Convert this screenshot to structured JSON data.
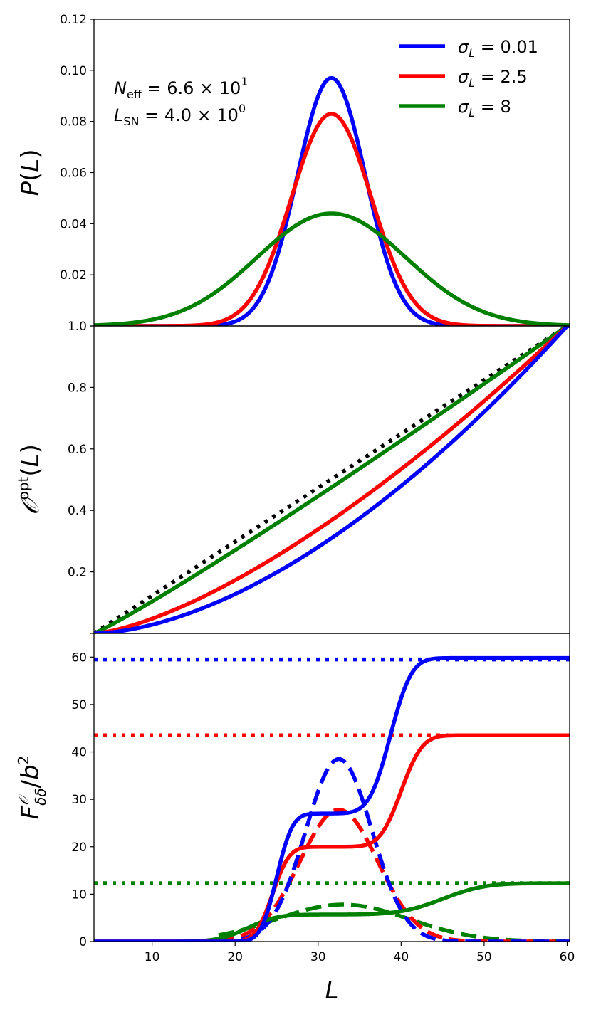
{
  "chart_data": [
    {
      "id": "top",
      "type": "line",
      "ylabel_base": "P",
      "ylabel_arg": "L",
      "xlim": [
        3,
        60.3
      ],
      "ylim": [
        0,
        0.12
      ],
      "yticks": [
        0.0,
        0.02,
        0.04,
        0.06,
        0.08,
        0.1,
        0.12
      ],
      "ytick_labels": [
        "",
        "0.02",
        "0.04",
        "0.06",
        "0.08",
        "0.10",
        "0.12"
      ],
      "annotations": [
        {
          "prefix": "N",
          "sub": "eff",
          "mid": " = 6.6 × 10",
          "sup": "1"
        },
        {
          "prefix": "L",
          "sub": "SN",
          "mid": " = 4.0 × 10",
          "sup": "0"
        }
      ],
      "legend": [
        {
          "sym": "σ",
          "sub": "L",
          "value": " = 0.01",
          "color": "#0000ff"
        },
        {
          "sym": "σ",
          "sub": "L",
          "value": " = 2.5",
          "color": "#ff0000"
        },
        {
          "sym": "σ",
          "sub": "L",
          "value": " = 8",
          "color": "#008000"
        }
      ],
      "series": [
        {
          "name": "σL = 0.01",
          "color": "#0000ff",
          "style": "solid",
          "kind": "gauss",
          "mu": 31.6,
          "sigma": 4.1,
          "amp": 0.097
        },
        {
          "name": "σL = 2.5",
          "color": "#ff0000",
          "style": "solid",
          "kind": "gauss",
          "mu": 31.6,
          "sigma": 4.8,
          "amp": 0.083
        },
        {
          "name": "σL = 8",
          "color": "#008000",
          "style": "solid",
          "kind": "gauss",
          "mu": 31.6,
          "sigma": 9.0,
          "amp": 0.044
        }
      ]
    },
    {
      "id": "middle",
      "type": "line",
      "ylabel_base": "𝒪",
      "ylabel_sup": "opt",
      "ylabel_arg": "L",
      "xlim": [
        3,
        60.3
      ],
      "ylim": [
        0,
        1.0
      ],
      "yticks": [
        0.0,
        0.2,
        0.4,
        0.6,
        0.8,
        1.0
      ],
      "ytick_labels": [
        "",
        "0.2",
        "0.4",
        "0.6",
        "0.8",
        "1.0"
      ],
      "series": [
        {
          "name": "diagonal",
          "color": "#000000",
          "style": "dotted",
          "kind": "power",
          "x0": 3,
          "x1": 60,
          "p": 1.0
        },
        {
          "name": "σL = 8",
          "color": "#008000",
          "style": "solid",
          "kind": "power",
          "x0": 3,
          "x1": 60,
          "p": 1.08
        },
        {
          "name": "σL = 2.5",
          "color": "#ff0000",
          "style": "solid",
          "kind": "power",
          "x0": 3,
          "x1": 60,
          "p": 1.45
        },
        {
          "name": "σL = 0.01",
          "color": "#0000ff",
          "style": "solid",
          "kind": "power",
          "x0": 3,
          "x1": 60,
          "p": 1.7
        }
      ]
    },
    {
      "id": "bottom",
      "type": "line",
      "xlabel": "L",
      "ylabel_base": "F",
      "ylabel_sub": "δδ",
      "ylabel_sup": "𝒪",
      "ylabel_tail": "/b",
      "ylabel_tail_sup": "2",
      "xlim": [
        3,
        60.3
      ],
      "ylim": [
        0,
        65
      ],
      "xticks": [
        10,
        20,
        30,
        40,
        50,
        60
      ],
      "xtick_labels": [
        "10",
        "20",
        "30",
        "40",
        "50",
        "60"
      ],
      "yticks": [
        0,
        10,
        20,
        30,
        40,
        50,
        60
      ],
      "ytick_labels": [
        "0",
        "10",
        "20",
        "30",
        "40",
        "50",
        "60"
      ],
      "series": [
        {
          "name": "σL = 0.01 limit",
          "color": "#0000ff",
          "style": "dotted",
          "kind": "const",
          "value": 59.5
        },
        {
          "name": "σL = 2.5 limit",
          "color": "#ff0000",
          "style": "dotted",
          "kind": "const",
          "value": 43.5
        },
        {
          "name": "σL = 8 limit",
          "color": "#008000",
          "style": "dotted",
          "kind": "const",
          "value": 12.3
        },
        {
          "name": "σL = 8 dashed",
          "color": "#008000",
          "style": "dashed",
          "kind": "gauss",
          "mu": 33,
          "sigma": 8.0,
          "amp": 7.8,
          "from": 18
        },
        {
          "name": "σL = 2.5 dashed",
          "color": "#ff0000",
          "style": "dashed",
          "kind": "gauss",
          "mu": 32.5,
          "sigma": 4.7,
          "amp": 27.8,
          "from": 18
        },
        {
          "name": "σL = 0.01 dashed",
          "color": "#0000ff",
          "style": "dashed",
          "kind": "gauss",
          "mu": 32.5,
          "sigma": 4.0,
          "amp": 38.5,
          "from": 18
        },
        {
          "name": "σL = 8 cumulative",
          "color": "#008000",
          "style": "solid",
          "kind": "cum",
          "parts": [
            {
              "mu": 21.5,
              "s": 2.8,
              "w": 5.7
            },
            {
              "mu": 45.0,
              "s": 4.0,
              "w": 6.6
            }
          ]
        },
        {
          "name": "σL = 2.5 cumulative",
          "color": "#ff0000",
          "style": "solid",
          "kind": "cum",
          "parts": [
            {
              "mu": 24.5,
              "s": 1.6,
              "w": 20.0
            },
            {
              "mu": 40.0,
              "s": 2.0,
              "w": 23.5
            }
          ]
        },
        {
          "name": "σL = 0.01 cumulative",
          "color": "#0000ff",
          "style": "solid",
          "kind": "cum",
          "parts": [
            {
              "mu": 25.0,
              "s": 1.5,
              "w": 27.0
            },
            {
              "mu": 38.7,
              "s": 2.0,
              "w": 32.8
            }
          ]
        }
      ]
    }
  ]
}
